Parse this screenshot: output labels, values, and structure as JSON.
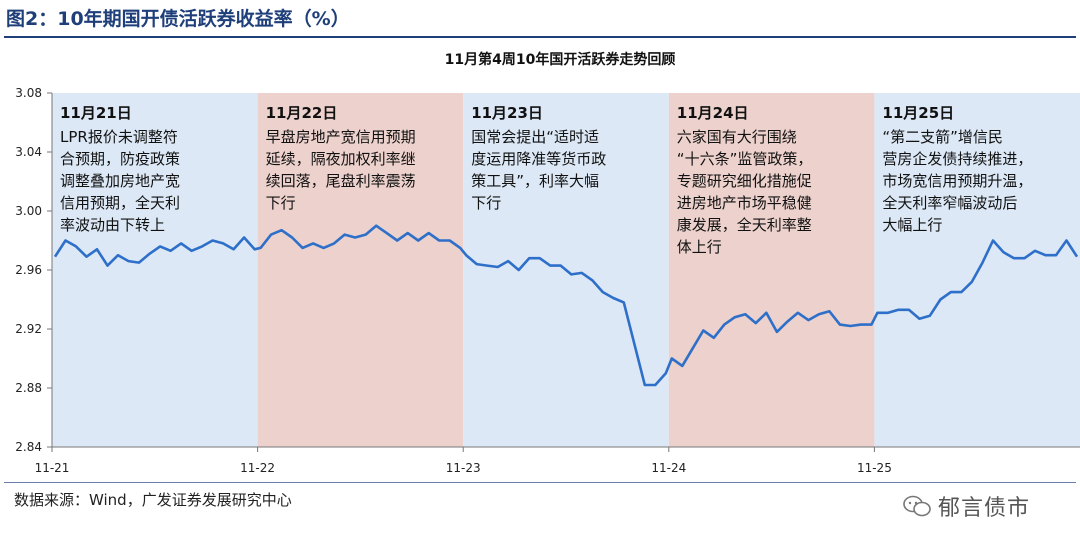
{
  "header": {
    "figure_title": "图2：10年期国开债活跃券收益率（%）"
  },
  "footer": {
    "source": "数据来源：Wind，广发证券发展研究中心",
    "watermark": "郁言债市"
  },
  "colors": {
    "line": "#2e6fc9",
    "blue_band": "#dce8f5",
    "red_band": "#ecd1cc",
    "title": "#1f3f7a"
  },
  "chart_data": {
    "type": "line",
    "title": "11月第4周10年国开活跃券走势回顾",
    "xlabel": "",
    "ylabel": "",
    "ylim": [
      2.84,
      3.08
    ],
    "yticks": [
      "3.08",
      "3.04",
      "3.00",
      "2.96",
      "2.92",
      "2.88",
      "2.84"
    ],
    "xticks": [
      "11-21",
      "11-22",
      "11-23",
      "11-24",
      "11-25"
    ],
    "grid": false,
    "bands": [
      {
        "day": "11-21",
        "color": "blue",
        "date_label": "11月21日",
        "lines": [
          "LPR报价未调整符",
          "合预期，防疫政策",
          "调整叠加房地产宽",
          "信用预期，全天利",
          "率波动由下转上"
        ]
      },
      {
        "day": "11-22",
        "color": "red",
        "date_label": "11月22日",
        "lines": [
          "早盘房地产宽信用预期",
          "延续，隔夜加权利率继",
          "续回落，尾盘利率震荡",
          "下行"
        ]
      },
      {
        "day": "11-23",
        "color": "blue",
        "date_label": "11月23日",
        "lines": [
          "国常会提出“适时适",
          "度运用降准等货币政",
          "策工具”，利率大幅",
          "下行"
        ]
      },
      {
        "day": "11-24",
        "color": "red",
        "date_label": "11月24日",
        "lines": [
          "六家国有大行围绕",
          "“十六条”监管政策，",
          "专题研究细化措施促",
          "进房地产市场平稳健",
          "康发展，全天利率整",
          "体上行"
        ]
      },
      {
        "day": "11-25",
        "color": "blue",
        "date_label": "11月25日",
        "lines": [
          "“第二支箭”增信民",
          "营房企发债持续推进，",
          "市场宽信用预期升温，",
          "全天利率窄幅波动后",
          "大幅上行"
        ]
      }
    ],
    "series": [
      {
        "days": [
          [
            2.969,
            2.98,
            2.976,
            2.969,
            2.974,
            2.963,
            2.97,
            2.966,
            2.965,
            2.971,
            2.976,
            2.973,
            2.978,
            2.973,
            2.976,
            2.98,
            2.978,
            2.974,
            2.982,
            2.974
          ],
          [
            2.975,
            2.984,
            2.987,
            2.982,
            2.975,
            2.978,
            2.975,
            2.978,
            2.984,
            2.982,
            2.984,
            2.99,
            2.985,
            2.98,
            2.985,
            2.98,
            2.985,
            2.98,
            2.98,
            2.975
          ],
          [
            2.97,
            2.964,
            2.963,
            2.962,
            2.966,
            2.96,
            2.968,
            2.968,
            2.963,
            2.963,
            2.957,
            2.958,
            2.953,
            2.945,
            2.941,
            2.938,
            2.91,
            2.882,
            2.882,
            2.89
          ],
          [
            2.9,
            2.895,
            2.907,
            2.919,
            2.914,
            2.923,
            2.928,
            2.93,
            2.924,
            2.931,
            2.918,
            2.925,
            2.931,
            2.926,
            2.93,
            2.932,
            2.923,
            2.922,
            2.923,
            2.923
          ],
          [
            2.931,
            2.931,
            2.933,
            2.933,
            2.927,
            2.929,
            2.94,
            2.945,
            2.945,
            2.952,
            2.965,
            2.98,
            2.972,
            2.968,
            2.968,
            2.973,
            2.97,
            2.97,
            2.98,
            2.969
          ]
        ]
      }
    ]
  }
}
